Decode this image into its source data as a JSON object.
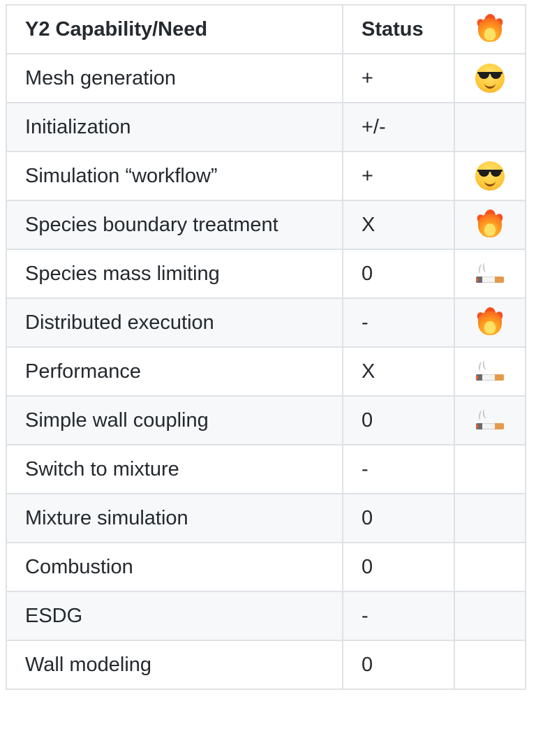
{
  "table": {
    "headers": [
      "Y2 Capability/Need",
      "Status"
    ],
    "header_icon": "fire-icon",
    "rows": [
      {
        "capability": "Mesh generation",
        "status": "+",
        "icon": "sunglasses-face-icon"
      },
      {
        "capability": "Initialization",
        "status": "+/-",
        "icon": ""
      },
      {
        "capability": "Simulation “workflow”",
        "status": "+",
        "icon": "sunglasses-face-icon"
      },
      {
        "capability": "Species boundary treatment",
        "status": "X",
        "icon": "fire-icon"
      },
      {
        "capability": "Species mass limiting",
        "status": "0",
        "icon": "cigarette-icon"
      },
      {
        "capability": "Distributed execution",
        "status": "-",
        "icon": "fire-icon"
      },
      {
        "capability": "Performance",
        "status": "X",
        "icon": "cigarette-icon"
      },
      {
        "capability": "Simple wall coupling",
        "status": "0",
        "icon": "cigarette-icon"
      },
      {
        "capability": "Switch to mixture",
        "status": "-",
        "icon": ""
      },
      {
        "capability": "Mixture simulation",
        "status": "0",
        "icon": ""
      },
      {
        "capability": "Combustion",
        "status": "0",
        "icon": ""
      },
      {
        "capability": "ESDG",
        "status": "-",
        "icon": ""
      },
      {
        "capability": "Wall modeling",
        "status": "0",
        "icon": ""
      }
    ]
  },
  "colors": {
    "border": "#dfe2e5",
    "stripe": "#f6f8fa",
    "text": "#24292e"
  }
}
